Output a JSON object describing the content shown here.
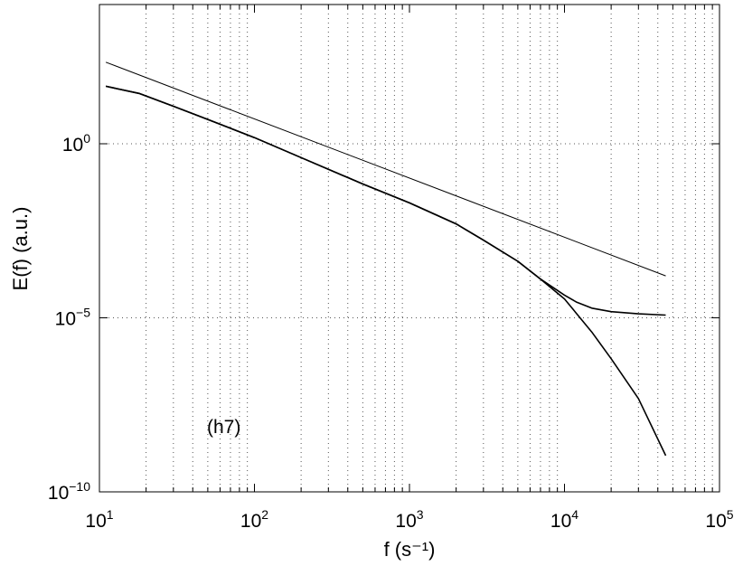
{
  "chart_data": {
    "type": "line",
    "title": "",
    "xlabel": "f (s⁻¹)",
    "ylabel": "E(f) (a.u.)",
    "x_scale": "log",
    "y_scale": "log",
    "xlim": [
      10,
      100000
    ],
    "ylim": [
      1e-10,
      10000
    ],
    "grid": true,
    "x_ticks": [
      {
        "value": 10,
        "base": "10",
        "exp": "1"
      },
      {
        "value": 100,
        "base": "10",
        "exp": "2"
      },
      {
        "value": 1000,
        "base": "10",
        "exp": "3"
      },
      {
        "value": 10000,
        "base": "10",
        "exp": "4"
      },
      {
        "value": 100000,
        "base": "10",
        "exp": "5"
      }
    ],
    "y_ticks": [
      {
        "value": 1e-10,
        "base": "10",
        "exp": "−10"
      },
      {
        "value": 1e-05,
        "base": "10",
        "exp": "−5"
      },
      {
        "value": 1,
        "base": "10",
        "exp": "0"
      }
    ],
    "annotation": "(h7)",
    "series": [
      {
        "x": [
          11,
          18,
          30,
          50,
          100,
          200,
          500,
          1000,
          2000,
          3000,
          5000,
          7000,
          10000,
          12000,
          15000,
          20000,
          30000,
          45000
        ],
        "y": [
          45,
          28,
          12,
          5,
          1.5,
          0.4,
          0.07,
          0.02,
          0.005,
          0.0017,
          0.00042,
          0.00013,
          4.5e-05,
          2.8e-05,
          1.9e-05,
          1.5e-05,
          1.3e-05,
          1.2e-05
        ]
      },
      {
        "x": [
          11,
          18,
          30,
          50,
          100,
          200,
          500,
          1000,
          2000,
          3000,
          5000,
          7000,
          10000,
          15000,
          20000,
          30000,
          45000
        ],
        "y": [
          45,
          28,
          12,
          5,
          1.5,
          0.4,
          0.07,
          0.02,
          0.005,
          0.0017,
          0.00042,
          0.00013,
          3.5e-05,
          3.9e-06,
          6.7e-07,
          4.8e-08,
          1.1e-09
        ]
      },
      {
        "x": [
          11,
          45000
        ],
        "y": [
          220,
          0.00016
        ]
      }
    ]
  }
}
